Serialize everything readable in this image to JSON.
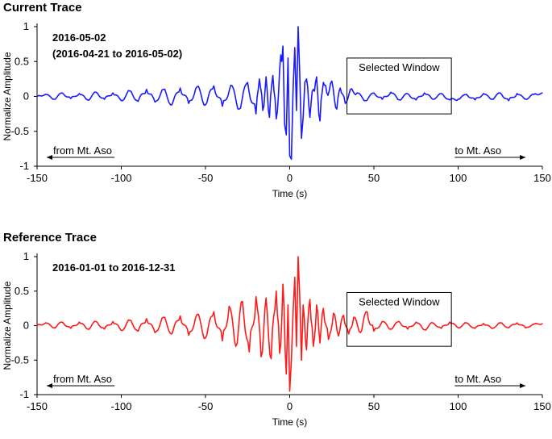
{
  "chart_data": [
    {
      "type": "line",
      "title": "Current Trace",
      "date_lines": [
        "2016-05-02",
        "(2016-04-21 to 2016-05-02)"
      ],
      "xlabel": "Time (s)",
      "ylabel": "Normalize Amplitude",
      "xlim": [
        -150,
        150
      ],
      "ylim": [
        -1,
        1
      ],
      "xticks": [
        -150,
        -100,
        -50,
        0,
        50,
        100,
        150
      ],
      "yticks": [
        -1,
        -0.5,
        0,
        0.5,
        1
      ],
      "grid": false,
      "series_color": "#1a1aff",
      "selected_window": {
        "label": "Selected Window",
        "x": [
          34,
          96
        ],
        "y": [
          -0.25,
          0.55
        ]
      },
      "arrow_left": {
        "label": "from Mt. Aso",
        "x": [
          -150,
          -104
        ]
      },
      "arrow_right": {
        "label": "to Mt. Aso",
        "x": [
          98,
          140
        ]
      },
      "series": [
        {
          "x": [
            -150,
            -145,
            -140,
            -135,
            -130,
            -125,
            -120,
            -115,
            -110,
            -105,
            -100,
            -95,
            -90,
            -85,
            -80,
            -75,
            -70,
            -65,
            -60,
            -55,
            -50,
            -45,
            -40,
            -35,
            -30,
            -25,
            -20,
            -18,
            -16,
            -14,
            -12,
            -10,
            -8,
            -6,
            -4,
            -3,
            -2,
            -1,
            0,
            1,
            2,
            3,
            4,
            5,
            6,
            7,
            8,
            9,
            10,
            12,
            14,
            16,
            18,
            20,
            22,
            25,
            28,
            30,
            33,
            36,
            40,
            45,
            50,
            55,
            60,
            65,
            70,
            75,
            80,
            85,
            90,
            95,
            100,
            105,
            110,
            115,
            120,
            125,
            130,
            135,
            140,
            145,
            150
          ],
          "values": [
            0,
            0.03,
            -0.04,
            0.05,
            -0.03,
            0.04,
            -0.05,
            0.06,
            -0.04,
            0.05,
            -0.06,
            0.08,
            -0.07,
            0.1,
            -0.08,
            0.1,
            -0.12,
            0.12,
            -0.1,
            0.14,
            -0.12,
            0.15,
            -0.14,
            0.16,
            -0.18,
            0.2,
            -0.25,
            0.25,
            -0.2,
            0.28,
            -0.3,
            0.3,
            -0.32,
            0.38,
            0.72,
            -0.4,
            -0.55,
            0.55,
            -0.85,
            -0.9,
            0.1,
            0.7,
            -0.2,
            1.0,
            0.3,
            -0.6,
            -0.3,
            0.2,
            0.25,
            -0.3,
            0.1,
            0.28,
            -0.35,
            0.2,
            0.05,
            0.22,
            -0.18,
            0.12,
            -0.1,
            0.1,
            0.05,
            -0.06,
            0.05,
            -0.04,
            0.06,
            -0.05,
            0.04,
            -0.05,
            0.05,
            -0.04,
            0.04,
            -0.05,
            -0.04,
            0.03,
            -0.05,
            0.04,
            -0.04,
            0.05,
            -0.06,
            0.04,
            -0.04,
            0.03,
            0.05
          ]
        }
      ]
    },
    {
      "type": "line",
      "title": "Reference Trace",
      "date_lines": [
        "2016-01-01 to 2016-12-31"
      ],
      "xlabel": "Time (s)",
      "ylabel": "Normalize Amplitude",
      "xlim": [
        -150,
        150
      ],
      "ylim": [
        -1,
        1
      ],
      "xticks": [
        -150,
        -100,
        -50,
        0,
        50,
        100,
        150
      ],
      "yticks": [
        -1,
        -0.5,
        0,
        0.5,
        1
      ],
      "grid": false,
      "series_color": "#ff1a1a",
      "selected_window": {
        "label": "Selected Window",
        "x": [
          34,
          96
        ],
        "y": [
          -0.3,
          0.48
        ]
      },
      "arrow_left": {
        "label": "from Mt. Aso",
        "x": [
          -150,
          -104
        ]
      },
      "arrow_right": {
        "label": "to Mt. Aso",
        "x": [
          98,
          140
        ]
      },
      "series": [
        {
          "x": [
            -150,
            -145,
            -140,
            -135,
            -130,
            -125,
            -120,
            -115,
            -110,
            -105,
            -100,
            -95,
            -90,
            -85,
            -80,
            -75,
            -70,
            -65,
            -60,
            -55,
            -50,
            -45,
            -40,
            -36,
            -32,
            -28,
            -24,
            -20,
            -17,
            -14,
            -11,
            -8,
            -6,
            -4,
            -2,
            -1,
            0,
            1,
            2,
            3,
            4,
            5,
            6,
            7,
            8,
            10,
            12,
            14,
            16,
            18,
            20,
            23,
            26,
            29,
            32,
            35,
            38,
            42,
            46,
            50,
            55,
            60,
            65,
            70,
            75,
            80,
            85,
            90,
            95,
            100,
            105,
            110,
            115,
            120,
            125,
            130,
            135,
            140,
            145,
            150
          ],
          "values": [
            0,
            0.04,
            -0.03,
            0.05,
            -0.04,
            0.05,
            -0.05,
            0.06,
            -0.05,
            0.06,
            -0.07,
            0.08,
            -0.08,
            0.1,
            -0.1,
            0.12,
            -0.12,
            0.14,
            -0.14,
            0.16,
            -0.18,
            0.2,
            -0.22,
            0.28,
            -0.3,
            0.35,
            -0.38,
            0.42,
            -0.45,
            0.4,
            -0.48,
            0.5,
            -0.4,
            0.6,
            -0.7,
            0.3,
            -0.95,
            -0.5,
            0.2,
            0.7,
            -0.3,
            1.0,
            0.4,
            -0.5,
            0.3,
            -0.35,
            0.38,
            -0.3,
            0.3,
            -0.25,
            0.25,
            -0.2,
            0.18,
            -0.15,
            0.15,
            -0.12,
            0.12,
            -0.1,
            0.2,
            -0.08,
            0.06,
            -0.05,
            0.06,
            -0.05,
            0.05,
            -0.06,
            0.04,
            -0.04,
            0.05,
            -0.03,
            0.04,
            -0.04,
            0.03,
            -0.04,
            0.04,
            -0.03,
            0.04,
            -0.03,
            0.02,
            0.03
          ]
        }
      ]
    }
  ]
}
